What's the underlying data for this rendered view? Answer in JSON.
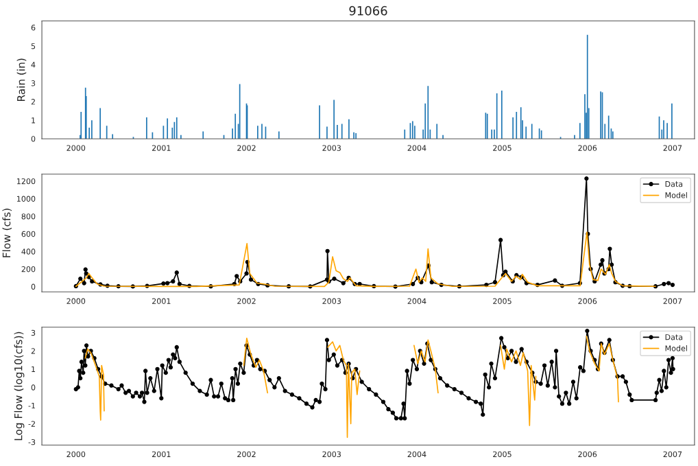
{
  "chart_data": [
    {
      "type": "bar",
      "title": "91066",
      "ylabel": "Rain (in)",
      "xlim": [
        "1999-08-08",
        "2007-04-05"
      ],
      "ylim": [
        0,
        6.35
      ],
      "xticks": [
        "2000",
        "2001",
        "2002",
        "2003",
        "2004",
        "2005",
        "2006",
        "2007"
      ],
      "yticks": [
        0,
        1,
        2,
        3,
        4,
        5,
        6
      ],
      "grid": false,
      "legend": false,
      "x": [
        "2000-01-19",
        "2000-01-23",
        "2000-02-11",
        "2000-02-14",
        "2000-02-27",
        "2000-03-09",
        "2000-04-14",
        "2000-05-12",
        "2000-06-06",
        "2000-09-03",
        "2000-10-30",
        "2000-11-24",
        "2001-01-10",
        "2001-01-27",
        "2001-02-17",
        "2001-02-26",
        "2001-03-08",
        "2001-03-26",
        "2001-06-29",
        "2001-09-26",
        "2001-11-02",
        "2001-11-14",
        "2001-11-27",
        "2001-12-03",
        "2002-01-01",
        "2002-01-04",
        "2002-02-18",
        "2002-03-08",
        "2002-03-24",
        "2002-05-20",
        "2002-11-10",
        "2002-12-12",
        "2003-01-11",
        "2003-01-25",
        "2003-02-14",
        "2003-03-16",
        "2003-04-06",
        "2003-04-15",
        "2003-11-10",
        "2003-12-04",
        "2003-12-14",
        "2003-12-23",
        "2004-01-28",
        "2004-02-06",
        "2004-02-18",
        "2004-02-27",
        "2004-03-27",
        "2004-04-22",
        "2004-10-22",
        "2004-10-29",
        "2004-11-17",
        "2004-11-28",
        "2004-12-09",
        "2004-12-30",
        "2005-02-16",
        "2005-03-03",
        "2005-03-22",
        "2005-03-29",
        "2005-04-13",
        "2005-05-08",
        "2005-06-09",
        "2005-06-18",
        "2005-09-08",
        "2005-11-07",
        "2005-11-30",
        "2005-12-21",
        "2005-12-27",
        "2006-01-01",
        "2006-01-07",
        "2006-02-27",
        "2006-03-06",
        "2006-03-17",
        "2006-04-02",
        "2006-04-13",
        "2006-04-20",
        "2006-11-05",
        "2006-11-16",
        "2006-11-24",
        "2006-12-09",
        "2006-12-29"
      ],
      "series": [
        {
          "color": "#1f77b4",
          "values": [
            0.2,
            1.45,
            2.75,
            2.3,
            0.6,
            1.0,
            1.65,
            0.7,
            0.25,
            0.1,
            1.15,
            0.35,
            0.7,
            1.1,
            0.6,
            0.9,
            1.15,
            0.2,
            0.4,
            0.2,
            0.55,
            1.35,
            0.8,
            2.95,
            1.9,
            1.8,
            0.7,
            0.8,
            0.65,
            0.4,
            1.8,
            0.65,
            2.1,
            0.75,
            0.8,
            1.05,
            0.35,
            0.3,
            0.5,
            0.85,
            0.95,
            0.7,
            0.5,
            1.9,
            2.85,
            0.5,
            0.8,
            0.2,
            1.4,
            1.35,
            0.5,
            0.5,
            2.45,
            2.6,
            1.15,
            1.45,
            1.7,
            1.0,
            0.65,
            0.8,
            0.55,
            0.45,
            0.1,
            0.2,
            0.85,
            2.4,
            1.4,
            5.6,
            1.65,
            2.55,
            2.5,
            0.8,
            1.25,
            0.55,
            0.4,
            1.2,
            0.5,
            1.0,
            0.85,
            1.9
          ]
        }
      ]
    },
    {
      "type": "line",
      "ylabel": "Flow (cfs)",
      "xlim": [
        "1999-08-08",
        "2007-04-05"
      ],
      "ylim": [
        -60,
        1280
      ],
      "xticks": [
        "2000",
        "2001",
        "2002",
        "2003",
        "2004",
        "2005",
        "2006",
        "2007"
      ],
      "yticks": [
        0,
        200,
        400,
        600,
        800,
        1000,
        1200
      ],
      "grid": false,
      "legend": "top right",
      "series": [
        {
          "name": "Data",
          "color": "#000000",
          "marker": "circle",
          "x": [
            "2000-01-01",
            "2000-01-20",
            "2000-02-05",
            "2000-02-11",
            "2000-02-14",
            "2000-02-25",
            "2000-03-10",
            "2000-04-15",
            "2000-05-15",
            "2000-07-01",
            "2000-09-01",
            "2000-11-01",
            "2001-01-10",
            "2001-01-27",
            "2001-02-20",
            "2001-03-08",
            "2001-03-20",
            "2001-05-01",
            "2001-08-01",
            "2001-11-10",
            "2001-11-20",
            "2001-12-05",
            "2002-01-01",
            "2002-01-05",
            "2002-01-20",
            "2002-02-20",
            "2002-04-01",
            "2002-07-01",
            "2002-10-01",
            "2002-12-12",
            "2002-12-14",
            "2002-12-20",
            "2003-01-12",
            "2003-02-20",
            "2003-03-15",
            "2003-04-10",
            "2003-05-01",
            "2003-07-01",
            "2003-10-01",
            "2003-12-15",
            "2004-01-05",
            "2004-01-20",
            "2004-02-20",
            "2004-03-05",
            "2004-04-15",
            "2004-07-01",
            "2004-10-25",
            "2004-12-01",
            "2004-12-25",
            "2005-01-05",
            "2005-01-15",
            "2005-02-15",
            "2005-03-03",
            "2005-03-25",
            "2005-04-15",
            "2005-06-01",
            "2005-08-15",
            "2005-09-15",
            "2005-11-30",
            "2005-12-28",
            "2006-01-03",
            "2006-01-15",
            "2006-02-01",
            "2006-02-27",
            "2006-03-06",
            "2006-03-15",
            "2006-04-02",
            "2006-04-07",
            "2006-04-15",
            "2006-05-01",
            "2006-06-01",
            "2006-07-01",
            "2006-10-20",
            "2006-11-25",
            "2006-12-15",
            "2007-01-01"
          ],
          "values": [
            5,
            90,
            40,
            195,
            150,
            110,
            60,
            25,
            10,
            4,
            2,
            8,
            35,
            40,
            60,
            160,
            30,
            8,
            3,
            30,
            120,
            60,
            150,
            280,
            80,
            30,
            15,
            3,
            2,
            80,
            405,
            60,
            90,
            40,
            100,
            30,
            30,
            5,
            1,
            30,
            100,
            50,
            240,
            50,
            20,
            3,
            20,
            50,
            530,
            130,
            170,
            60,
            130,
            110,
            40,
            20,
            70,
            10,
            40,
            1230,
            600,
            200,
            60,
            250,
            300,
            150,
            200,
            430,
            250,
            50,
            10,
            5,
            3,
            30,
            40,
            20
          ]
        },
        {
          "name": "Model",
          "color": "#ffa500",
          "marker": "none",
          "x": [
            "2000-01-01",
            "2000-02-15",
            "2000-02-25",
            "2000-03-10",
            "2000-04-01",
            "2000-05-01",
            "2001-01-01",
            "2001-06-01",
            "2001-12-01",
            "2002-01-03",
            "2002-01-15",
            "2002-02-15",
            "2002-03-15",
            "2002-05-01",
            "2002-12-01",
            "2002-12-20",
            "2003-01-05",
            "2003-01-20",
            "2003-02-05",
            "2003-02-20",
            "2003-03-10",
            "2003-03-20",
            "2003-04-15",
            "2003-07-01",
            "2003-12-01",
            "2003-12-28",
            "2004-01-10",
            "2004-01-25",
            "2004-02-08",
            "2004-02-18",
            "2004-03-01",
            "2004-04-01",
            "2004-06-01",
            "2004-12-01",
            "2004-12-30",
            "2005-01-15",
            "2005-02-10",
            "2005-03-01",
            "2005-03-20",
            "2005-03-28",
            "2005-04-20",
            "2005-06-01",
            "2005-12-01",
            "2005-12-30",
            "2006-01-10",
            "2006-01-25",
            "2006-02-15",
            "2006-03-01",
            "2006-03-10",
            "2006-03-20",
            "2006-04-05",
            "2006-04-15",
            "2006-05-01",
            "2006-06-01",
            "2006-10-20"
          ],
          "values": [
            3,
            100,
            150,
            100,
            30,
            5,
            2,
            2,
            20,
            490,
            150,
            40,
            30,
            5,
            2,
            50,
            340,
            180,
            160,
            90,
            60,
            100,
            10,
            2,
            5,
            200,
            50,
            100,
            60,
            430,
            100,
            30,
            3,
            5,
            100,
            150,
            60,
            120,
            80,
            140,
            50,
            10,
            10,
            620,
            250,
            80,
            70,
            200,
            170,
            140,
            250,
            150,
            60,
            10,
            3
          ]
        }
      ]
    },
    {
      "type": "line",
      "ylabel": "Log Flow (log10(cfs))",
      "xlim": [
        "1999-08-08",
        "2007-04-05"
      ],
      "ylim": [
        -3.17,
        3.3
      ],
      "xticks": [
        "2000",
        "2001",
        "2002",
        "2003",
        "2004",
        "2005",
        "2006",
        "2007"
      ],
      "yticks": [
        -3,
        -2,
        -1,
        0,
        1,
        2,
        3
      ],
      "grid": false,
      "legend": "top right",
      "series": [
        {
          "name": "Data",
          "color": "#000000",
          "marker": "circle",
          "x": [
            "2000-01-01",
            "2000-01-10",
            "2000-01-15",
            "2000-01-20",
            "2000-01-25",
            "2000-02-01",
            "2000-02-05",
            "2000-02-10",
            "2000-02-15",
            "2000-02-22",
            "2000-03-05",
            "2000-03-20",
            "2000-04-05",
            "2000-04-20",
            "2000-05-05",
            "2000-06-01",
            "2000-07-01",
            "2000-07-15",
            "2000-08-01",
            "2000-08-15",
            "2000-09-01",
            "2000-09-15",
            "2000-10-01",
            "2000-10-10",
            "2000-10-20",
            "2000-10-25",
            "2000-11-01",
            "2000-11-15",
            "2000-12-01",
            "2000-12-15",
            "2001-01-01",
            "2001-01-05",
            "2001-01-20",
            "2001-02-01",
            "2001-02-10",
            "2001-02-20",
            "2001-03-01",
            "2001-03-08",
            "2001-03-20",
            "2001-04-15",
            "2001-05-15",
            "2001-06-15",
            "2001-07-15",
            "2001-08-01",
            "2001-08-15",
            "2001-09-01",
            "2001-09-15",
            "2001-10-01",
            "2001-10-15",
            "2001-11-01",
            "2001-11-05",
            "2001-11-15",
            "2001-11-25",
            "2001-12-05",
            "2001-12-20",
            "2002-01-01",
            "2002-01-15",
            "2002-02-01",
            "2002-02-15",
            "2002-03-01",
            "2002-03-20",
            "2002-04-10",
            "2002-05-01",
            "2002-05-20",
            "2002-06-15",
            "2002-07-15",
            "2002-08-15",
            "2002-09-15",
            "2002-10-10",
            "2002-10-25",
            "2002-11-10",
            "2002-11-20",
            "2002-12-05",
            "2002-12-12",
            "2002-12-20",
            "2003-01-10",
            "2003-01-25",
            "2003-02-15",
            "2003-03-01",
            "2003-03-15",
            "2003-04-01",
            "2003-04-15",
            "2003-05-10",
            "2003-06-10",
            "2003-07-10",
            "2003-08-10",
            "2003-09-01",
            "2003-09-20",
            "2003-10-05",
            "2003-10-25",
            "2003-11-05",
            "2003-11-10",
            "2003-11-20",
            "2003-12-01",
            "2003-12-15",
            "2004-01-01",
            "2004-01-15",
            "2004-02-01",
            "2004-02-15",
            "2004-03-01",
            "2004-03-20",
            "2004-04-10",
            "2004-05-10",
            "2004-06-10",
            "2004-07-10",
            "2004-08-10",
            "2004-09-10",
            "2004-10-01",
            "2004-10-10",
            "2004-10-20",
            "2004-11-05",
            "2004-11-15",
            "2004-12-01",
            "2004-12-28",
            "2005-01-10",
            "2005-01-25",
            "2005-02-10",
            "2005-03-01",
            "2005-03-25",
            "2005-04-15",
            "2005-05-10",
            "2005-05-25",
            "2005-06-15",
            "2005-07-01",
            "2005-07-15",
            "2005-08-01",
            "2005-08-15",
            "2005-08-20",
            "2005-09-01",
            "2005-09-15",
            "2005-10-01",
            "2005-10-15",
            "2005-11-01",
            "2005-11-15",
            "2005-12-01",
            "2005-12-15",
            "2005-12-31",
            "2006-01-15",
            "2006-02-01",
            "2006-02-15",
            "2006-03-01",
            "2006-03-15",
            "2006-04-05",
            "2006-04-20",
            "2006-05-10",
            "2006-06-01",
            "2006-06-15",
            "2006-07-01",
            "2006-07-10",
            "2006-10-20",
            "2006-10-25",
            "2006-11-05",
            "2006-11-15",
            "2006-11-25",
            "2006-12-05",
            "2006-12-15",
            "2006-12-25",
            "2007-01-01",
            "2007-01-03"
          ],
          "values": [
            -0.1,
            0.0,
            0.9,
            0.5,
            1.4,
            0.8,
            2.0,
            1.2,
            2.3,
            1.7,
            2.0,
            1.6,
            1.0,
            0.6,
            0.2,
            0.1,
            -0.1,
            0.1,
            -0.3,
            -0.2,
            -0.5,
            -0.3,
            -0.5,
            -0.3,
            -0.8,
            0.9,
            -0.3,
            0.5,
            -0.2,
            1.0,
            -0.6,
            1.2,
            0.8,
            1.5,
            1.1,
            1.8,
            1.6,
            2.2,
            1.4,
            0.8,
            0.2,
            -0.2,
            -0.4,
            0.4,
            -0.5,
            -0.5,
            0.2,
            -0.6,
            -0.7,
            0.5,
            -0.7,
            1.0,
            0.2,
            1.3,
            0.8,
            2.3,
            1.8,
            1.2,
            1.5,
            1.0,
            0.9,
            0.4,
            0.0,
            0.5,
            -0.2,
            -0.4,
            -0.6,
            -0.9,
            -1.1,
            -0.7,
            -0.8,
            0.2,
            -0.1,
            2.6,
            1.5,
            1.8,
            1.2,
            1.5,
            0.8,
            1.3,
            0.5,
            1.0,
            0.3,
            -0.1,
            -0.4,
            -0.8,
            -1.2,
            -1.4,
            -1.7,
            -1.7,
            -0.9,
            -1.7,
            0.9,
            0.2,
            1.5,
            1.0,
            2.0,
            1.3,
            2.4,
            1.5,
            1.0,
            0.5,
            0.1,
            -0.1,
            -0.3,
            -0.6,
            -0.8,
            -0.9,
            -1.5,
            0.7,
            0.0,
            1.3,
            0.5,
            2.7,
            2.2,
            1.6,
            2.0,
            1.4,
            2.1,
            1.4,
            0.8,
            0.3,
            0.2,
            1.2,
            0.1,
            1.4,
            0.0,
            2.0,
            -0.5,
            -0.9,
            -0.3,
            -0.9,
            0.3,
            -0.6,
            1.1,
            0.9,
            3.1,
            2.0,
            1.5,
            1.0,
            2.4,
            1.9,
            2.6,
            1.5,
            0.6,
            0.6,
            0.3,
            -0.4,
            -0.7,
            -0.7,
            -0.3,
            0.4,
            -0.2,
            0.9,
            0.0,
            1.5,
            0.8,
            1.6,
            1.0
          ]
        },
        {
          "name": "Model",
          "color": "#ffa500",
          "marker": "none",
          "x": [
            "2000-02-10",
            "2000-02-20",
            "2000-03-05",
            "2000-03-25",
            "2000-04-10",
            "2000-04-14",
            "2000-04-16",
            "2000-04-20",
            "2000-04-28",
            "2000-05-01",
            "2000-06-01",
            "2001-12-20",
            "2002-01-02",
            "2002-01-20",
            "2002-02-10",
            "2002-02-25",
            "2002-03-15",
            "2002-04-01",
            "2002-06-01",
            "2002-12-15",
            "2003-01-05",
            "2003-01-20",
            "2003-02-05",
            "2003-02-20",
            "2003-03-05",
            "2003-03-09",
            "2003-03-14",
            "2003-03-24",
            "2003-03-28",
            "2003-04-10",
            "2003-04-20",
            "2003-05-01",
            "2003-06-01",
            "2003-12-20",
            "2004-01-05",
            "2004-01-20",
            "2004-02-05",
            "2004-02-18",
            "2004-03-01",
            "2004-03-20",
            "2004-04-01",
            "2004-06-01",
            "2004-12-25",
            "2005-01-10",
            "2005-01-20",
            "2005-02-10",
            "2005-03-01",
            "2005-03-20",
            "2005-04-01",
            "2005-04-20",
            "2005-04-28",
            "2005-05-05",
            "2005-05-20",
            "2005-05-25",
            "2005-07-01",
            "2005-12-28",
            "2006-01-10",
            "2006-02-01",
            "2006-02-20",
            "2006-03-01",
            "2006-03-15",
            "2006-04-05",
            "2006-04-20",
            "2006-05-10",
            "2006-05-14"
          ],
          "values": [
            1.6,
            2.1,
            1.9,
            1.2,
            0.6,
            -1.3,
            -1.8,
            1.2,
            0.7,
            -1.3,
            null,
            1.2,
            2.7,
            1.8,
            1.1,
            1.5,
            0.9,
            -0.3,
            null,
            2.2,
            2.5,
            2.0,
            2.3,
            1.5,
            1.2,
            -2.75,
            1.3,
            -2.0,
            0.8,
            1.0,
            -0.4,
            0.9,
            null,
            2.3,
            1.3,
            2.0,
            1.4,
            2.6,
            2.0,
            1.0,
            -0.3,
            null,
            2.3,
            1.0,
            2.1,
            1.4,
            2.0,
            1.2,
            1.9,
            0.9,
            -2.1,
            1.2,
            -0.7,
            0.6,
            null,
            2.8,
            2.0,
            1.3,
            0.9,
            2.4,
            1.8,
            2.4,
            1.5,
            0.5,
            -0.8
          ]
        }
      ]
    }
  ]
}
